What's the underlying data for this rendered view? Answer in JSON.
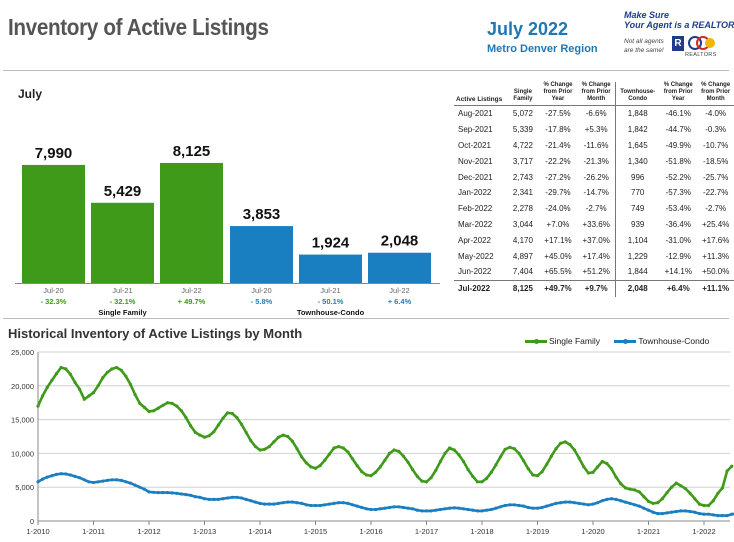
{
  "header": {
    "title": "Inventory of Active Listings",
    "month_title": "July 2022",
    "region": "Metro Denver Region",
    "tagline_1": "Make Sure",
    "tagline_2": "Your Agent is a REALTOR®",
    "note_1": "Not all agents",
    "note_2": "are the same!",
    "realtor_logo_letter": "R",
    "org_caption": "REALTORS"
  },
  "colors": {
    "single_family": "#3e9a18",
    "townhouse": "#1a7fc0",
    "table_rule": "#777777",
    "grid": "#d0d0d0"
  },
  "bar_section": {
    "title": "July"
  },
  "table": {
    "headers": [
      "Active Listings",
      "Single Family",
      "% Change from Prior Year",
      "% Change from Prior Month",
      "Townhouse-Condo",
      "% Change from Prior Year",
      "% Change from Prior Month"
    ],
    "rows": [
      [
        "Aug-2021",
        "5,072",
        "-27.5%",
        "-6.6%",
        "1,848",
        "-46.1%",
        "-4.0%"
      ],
      [
        "Sep-2021",
        "5,339",
        "-17.8%",
        "+5.3%",
        "1,842",
        "-44.7%",
        "-0.3%"
      ],
      [
        "Oct-2021",
        "4,722",
        "-21.4%",
        "-11.6%",
        "1,645",
        "-49.9%",
        "-10.7%"
      ],
      [
        "Nov-2021",
        "3,717",
        "-22.2%",
        "-21.3%",
        "1,340",
        "-51.8%",
        "-18.5%"
      ],
      [
        "Dec-2021",
        "2,743",
        "-27.2%",
        "-26.2%",
        "996",
        "-52.2%",
        "-25.7%"
      ],
      [
        "Jan-2022",
        "2,341",
        "-29.7%",
        "-14.7%",
        "770",
        "-57.3%",
        "-22.7%"
      ],
      [
        "Feb-2022",
        "2,278",
        "-24.0%",
        "-2.7%",
        "749",
        "-53.4%",
        "-2.7%"
      ],
      [
        "Mar-2022",
        "3,044",
        "+7.0%",
        "+33.6%",
        "939",
        "-36.4%",
        "+25.4%"
      ],
      [
        "Apr-2022",
        "4,170",
        "+17.1%",
        "+37.0%",
        "1,104",
        "-31.0%",
        "+17.6%"
      ],
      [
        "May-2022",
        "4,897",
        "+45.0%",
        "+17.4%",
        "1,229",
        "-12.9%",
        "+11.3%"
      ],
      [
        "Jun-2022",
        "7,404",
        "+65.5%",
        "+51.2%",
        "1,844",
        "+14.1%",
        "+50.0%"
      ],
      [
        "Jul-2022",
        "8,125",
        "+49.7%",
        "+9.7%",
        "2,048",
        "+6.4%",
        "+11.1%"
      ]
    ]
  },
  "hist_section": {
    "title": "Historical Inventory of Active Listings by Month"
  },
  "chart_data": [
    {
      "type": "bar",
      "title": "July",
      "categories": [
        "Jul-20",
        "Jul-21",
        "Jul-22"
      ],
      "series": [
        {
          "name": "Single Family",
          "values": [
            7990,
            5429,
            8125
          ],
          "labels": [
            "7,990",
            "5,429",
            "8,125"
          ],
          "changes": [
            "- 32.3%",
            "- 32.1%",
            "+ 49.7%"
          ],
          "color": "#3e9a18"
        },
        {
          "name": "Townhouse-Condo",
          "values": [
            3853,
            1924,
            2048
          ],
          "labels": [
            "3,853",
            "1,924",
            "2,048"
          ],
          "changes": [
            "- 5.8%",
            "- 50.1%",
            "+ 6.4%"
          ],
          "color": "#1a7fc0"
        }
      ],
      "ylim": [
        0,
        9000
      ]
    },
    {
      "type": "line",
      "title": "Historical Inventory of Active Listings by Month",
      "x_start": "2010-01",
      "x_step": "month",
      "x_ticks": [
        "1-2010",
        "1-2011",
        "1-2012",
        "1-2013",
        "1-2014",
        "1-2015",
        "1-2016",
        "1-2017",
        "1-2018",
        "1-2019",
        "1-2020",
        "1-2021",
        "1-2022"
      ],
      "ylim": [
        0,
        25000
      ],
      "y_ticks": [
        "0",
        "5,000",
        "10,000",
        "15,000",
        "20,000",
        "25,000"
      ],
      "grid": true,
      "legend": "top-right",
      "series": [
        {
          "name": "Single Family",
          "color": "#3e9a18",
          "values": [
            17000,
            18500,
            19800,
            20800,
            21800,
            22700,
            22500,
            21700,
            20500,
            19500,
            18000,
            18500,
            19000,
            20000,
            21200,
            22000,
            22500,
            22700,
            22300,
            21400,
            20200,
            18700,
            17400,
            16800,
            16200,
            16300,
            16700,
            17100,
            17500,
            17400,
            17000,
            16300,
            15300,
            14100,
            13100,
            12700,
            12400,
            12600,
            13200,
            14200,
            15200,
            16000,
            15900,
            15300,
            14300,
            13100,
            11900,
            11000,
            10500,
            10600,
            11000,
            11700,
            12400,
            12700,
            12500,
            11800,
            10700,
            9500,
            8600,
            8000,
            7800,
            8200,
            9000,
            9900,
            10800,
            11000,
            10800,
            10200,
            9200,
            8200,
            7300,
            6800,
            6700,
            7200,
            8000,
            9000,
            10000,
            10500,
            10300,
            9600,
            8700,
            7600,
            6600,
            5900,
            5800,
            6400,
            7500,
            8800,
            10000,
            10800,
            10500,
            9800,
            8800,
            7600,
            6600,
            5800,
            5800,
            6300,
            7200,
            8300,
            9500,
            10600,
            10900,
            10700,
            10000,
            8900,
            7700,
            6800,
            6700,
            7300,
            8400,
            9600,
            10700,
            11500,
            11700,
            11300,
            10500,
            9300,
            8000,
            7100,
            7200,
            8000,
            8800,
            8500,
            7700,
            6500,
            5500,
            4900,
            4700,
            4600,
            4300,
            3600,
            2900,
            2600,
            2700,
            3300,
            4200,
            5000,
            5600,
            5200,
            4800,
            4100,
            3300,
            2500,
            2300,
            2300,
            3000,
            4100,
            4900,
            7400,
            8100
          ]
        },
        {
          "name": "Townhouse-Condo",
          "color": "#1a7fc0",
          "values": [
            5800,
            6200,
            6500,
            6700,
            6900,
            7000,
            6950,
            6800,
            6600,
            6400,
            6100,
            5800,
            5700,
            5800,
            5900,
            6000,
            6100,
            6100,
            6000,
            5800,
            5600,
            5300,
            5000,
            4700,
            4300,
            4250,
            4200,
            4200,
            4200,
            4150,
            4100,
            4000,
            3900,
            3800,
            3600,
            3500,
            3300,
            3200,
            3200,
            3200,
            3300,
            3400,
            3500,
            3500,
            3400,
            3200,
            3000,
            2800,
            2600,
            2500,
            2500,
            2500,
            2600,
            2700,
            2800,
            2800,
            2700,
            2600,
            2400,
            2300,
            2300,
            2300,
            2400,
            2500,
            2600,
            2700,
            2700,
            2600,
            2400,
            2200,
            2000,
            1800,
            1700,
            1700,
            1800,
            1900,
            2000,
            2100,
            2100,
            2000,
            1900,
            1800,
            1600,
            1500,
            1500,
            1500,
            1600,
            1700,
            1800,
            1900,
            1950,
            1900,
            1800,
            1700,
            1600,
            1500,
            1500,
            1600,
            1700,
            1900,
            2100,
            2300,
            2400,
            2400,
            2300,
            2200,
            2000,
            1900,
            1900,
            2000,
            2200,
            2400,
            2600,
            2700,
            2800,
            2800,
            2700,
            2600,
            2500,
            2400,
            2500,
            2700,
            3000,
            3200,
            3300,
            3200,
            3000,
            2800,
            2600,
            2400,
            2200,
            1900,
            1600,
            1300,
            1100,
            1100,
            1200,
            1300,
            1400,
            1500,
            1500,
            1400,
            1300,
            1100,
            1000,
            1000,
            900,
            800,
            800,
            800,
            1000,
            1100,
            1200,
            1800,
            2000
          ]
        }
      ]
    }
  ]
}
